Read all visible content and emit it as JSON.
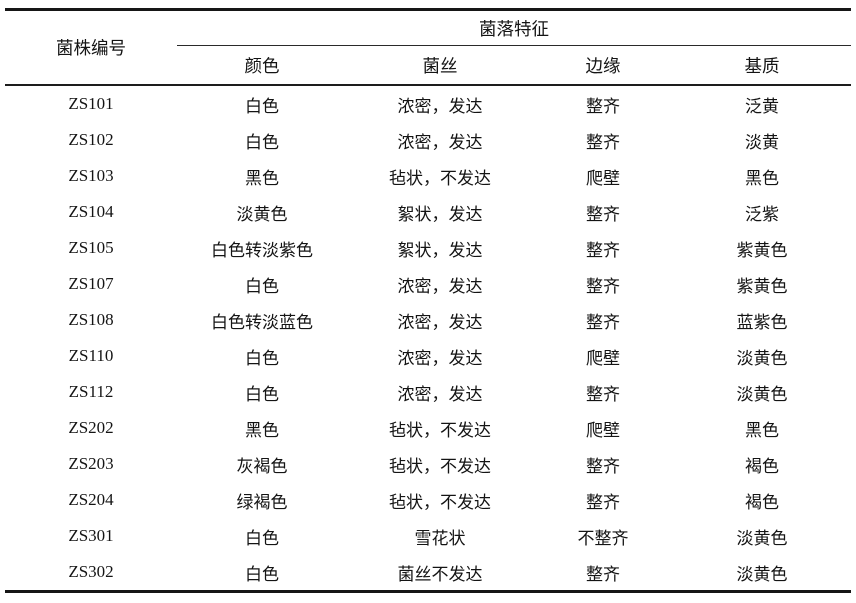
{
  "colors": {
    "background": "#ffffff",
    "text": "#141414",
    "rule": "#161616"
  },
  "table": {
    "strain_col_header": "菌株编号",
    "group_header": "菌落特征",
    "sub_headers": [
      "颜色",
      "菌丝",
      "边缘",
      "基质"
    ],
    "rows": [
      {
        "strain": "ZS101",
        "color": "白色",
        "hyphae": "浓密，发达",
        "edge": "整齐",
        "base": "泛黄"
      },
      {
        "strain": "ZS102",
        "color": "白色",
        "hyphae": "浓密，发达",
        "edge": "整齐",
        "base": "淡黄"
      },
      {
        "strain": "ZS103",
        "color": "黑色",
        "hyphae": "毡状，不发达",
        "edge": "爬壁",
        "base": "黑色"
      },
      {
        "strain": "ZS104",
        "color": "淡黄色",
        "hyphae": "絮状，发达",
        "edge": "整齐",
        "base": "泛紫"
      },
      {
        "strain": "ZS105",
        "color": "白色转淡紫色",
        "hyphae": "絮状，发达",
        "edge": "整齐",
        "base": "紫黄色"
      },
      {
        "strain": "ZS107",
        "color": "白色",
        "hyphae": "浓密，发达",
        "edge": "整齐",
        "base": "紫黄色"
      },
      {
        "strain": "ZS108",
        "color": "白色转淡蓝色",
        "hyphae": "浓密，发达",
        "edge": "整齐",
        "base": "蓝紫色"
      },
      {
        "strain": "ZS110",
        "color": "白色",
        "hyphae": "浓密，发达",
        "edge": "爬壁",
        "base": "淡黄色"
      },
      {
        "strain": "ZS112",
        "color": "白色",
        "hyphae": "浓密，发达",
        "edge": "整齐",
        "base": "淡黄色"
      },
      {
        "strain": "ZS202",
        "color": "黑色",
        "hyphae": "毡状，不发达",
        "edge": "爬壁",
        "base": "黑色"
      },
      {
        "strain": "ZS203",
        "color": "灰褐色",
        "hyphae": "毡状，不发达",
        "edge": "整齐",
        "base": "褐色"
      },
      {
        "strain": "ZS204",
        "color": "绿褐色",
        "hyphae": "毡状，不发达",
        "edge": "整齐",
        "base": "褐色"
      },
      {
        "strain": "ZS301",
        "color": "白色",
        "hyphae": "雪花状",
        "edge": "不整齐",
        "base": "淡黄色"
      },
      {
        "strain": "ZS302",
        "color": "白色",
        "hyphae": "菌丝不发达",
        "edge": "整齐",
        "base": "淡黄色"
      }
    ]
  }
}
